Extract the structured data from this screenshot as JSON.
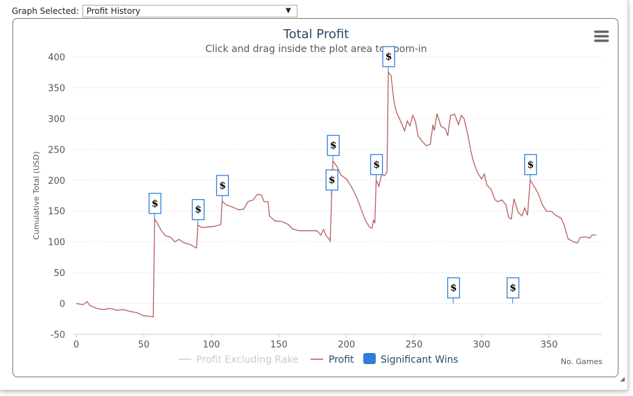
{
  "selector": {
    "label": "Graph Selected:",
    "value": "Profit History"
  },
  "menu_icon": "hamburger-menu-icon",
  "chart_data": {
    "type": "line",
    "title": "Total Profit",
    "subtitle": "Click and drag inside the plot area to zoom-in",
    "xlabel": "No. Games",
    "ylabel": "Cumulative Total (USD)",
    "xlim": [
      0,
      390
    ],
    "ylim": [
      -50,
      400
    ],
    "xticks": [
      0,
      50,
      100,
      150,
      200,
      250,
      300,
      350
    ],
    "yticks": [
      -50,
      0,
      50,
      100,
      150,
      200,
      250,
      300,
      350,
      400
    ],
    "grid": true,
    "legend": {
      "placement": "bottom",
      "items": [
        "Profit Excluding Rake",
        "Profit",
        "Significant Wins"
      ]
    },
    "colors": {
      "profit": "#b85c5c",
      "profit_excluding_rake": "#cccccc",
      "significant_wins": "#2f7ed8"
    },
    "series": [
      {
        "name": "Profit Excluding Rake",
        "hidden": true,
        "points": []
      },
      {
        "name": "Profit",
        "points": [
          [
            0,
            0
          ],
          [
            5,
            -2
          ],
          [
            8,
            3
          ],
          [
            10,
            -3
          ],
          [
            15,
            -8
          ],
          [
            20,
            -10
          ],
          [
            25,
            -8
          ],
          [
            30,
            -11
          ],
          [
            35,
            -10
          ],
          [
            40,
            -13
          ],
          [
            45,
            -15
          ],
          [
            50,
            -20
          ],
          [
            55,
            -21
          ],
          [
            57,
            -22
          ],
          [
            58,
            137
          ],
          [
            60,
            130
          ],
          [
            63,
            118
          ],
          [
            66,
            110
          ],
          [
            70,
            107
          ],
          [
            73,
            100
          ],
          [
            76,
            104
          ],
          [
            80,
            98
          ],
          [
            84,
            96
          ],
          [
            88,
            91
          ],
          [
            89,
            90
          ],
          [
            90,
            127
          ],
          [
            93,
            123
          ],
          [
            97,
            124
          ],
          [
            102,
            125
          ],
          [
            107,
            128
          ],
          [
            108,
            166
          ],
          [
            111,
            160
          ],
          [
            115,
            157
          ],
          [
            120,
            152
          ],
          [
            124,
            153
          ],
          [
            127,
            165
          ],
          [
            131,
            168
          ],
          [
            134,
            177
          ],
          [
            137,
            176
          ],
          [
            139,
            165
          ],
          [
            142,
            165
          ],
          [
            143,
            142
          ],
          [
            147,
            134
          ],
          [
            152,
            133
          ],
          [
            157,
            128
          ],
          [
            160,
            121
          ],
          [
            165,
            118
          ],
          [
            178,
            118
          ],
          [
            181,
            111
          ],
          [
            183,
            120
          ],
          [
            185,
            110
          ],
          [
            187,
            105
          ],
          [
            188,
            101
          ],
          [
            189,
            175
          ],
          [
            190,
            231
          ],
          [
            193,
            222
          ],
          [
            196,
            208
          ],
          [
            200,
            202
          ],
          [
            204,
            188
          ],
          [
            208,
            170
          ],
          [
            211,
            152
          ],
          [
            214,
            135
          ],
          [
            217,
            124
          ],
          [
            219,
            122
          ],
          [
            220,
            135
          ],
          [
            221,
            130
          ],
          [
            222,
            200
          ],
          [
            224,
            190
          ],
          [
            226,
            210
          ],
          [
            228,
            207
          ],
          [
            230,
            213
          ],
          [
            231,
            375
          ],
          [
            233,
            370
          ],
          [
            235,
            330
          ],
          [
            237,
            310
          ],
          [
            240,
            296
          ],
          [
            243,
            280
          ],
          [
            245,
            296
          ],
          [
            247,
            288
          ],
          [
            249,
            305
          ],
          [
            251,
            296
          ],
          [
            253,
            272
          ],
          [
            256,
            263
          ],
          [
            259,
            256
          ],
          [
            262,
            258
          ],
          [
            264,
            290
          ],
          [
            265,
            280
          ],
          [
            267,
            308
          ],
          [
            270,
            287
          ],
          [
            273,
            284
          ],
          [
            275,
            272
          ],
          [
            277,
            305
          ],
          [
            280,
            307
          ],
          [
            283,
            290
          ],
          [
            285,
            305
          ],
          [
            287,
            300
          ],
          [
            290,
            272
          ],
          [
            292,
            248
          ],
          [
            294,
            230
          ],
          [
            297,
            212
          ],
          [
            300,
            202
          ],
          [
            302,
            210
          ],
          [
            304,
            192
          ],
          [
            307,
            185
          ],
          [
            310,
            168
          ],
          [
            312,
            165
          ],
          [
            315,
            168
          ],
          [
            318,
            160
          ],
          [
            320,
            140
          ],
          [
            322,
            137
          ],
          [
            324,
            170
          ],
          [
            327,
            148
          ],
          [
            330,
            142
          ],
          [
            332,
            155
          ],
          [
            334,
            143
          ],
          [
            336,
            200
          ],
          [
            339,
            190
          ],
          [
            342,
            178
          ],
          [
            345,
            160
          ],
          [
            348,
            150
          ],
          [
            352,
            149
          ],
          [
            355,
            143
          ],
          [
            359,
            138
          ],
          [
            361,
            128
          ],
          [
            364,
            105
          ],
          [
            368,
            100
          ],
          [
            371,
            98
          ],
          [
            373,
            107
          ],
          [
            377,
            108
          ],
          [
            380,
            106
          ],
          [
            382,
            111
          ],
          [
            385,
            111
          ]
        ]
      }
    ],
    "significant_wins": [
      58,
      90,
      108,
      189,
      190,
      222,
      231,
      279,
      323,
      336
    ],
    "marker_symbol": "$"
  }
}
